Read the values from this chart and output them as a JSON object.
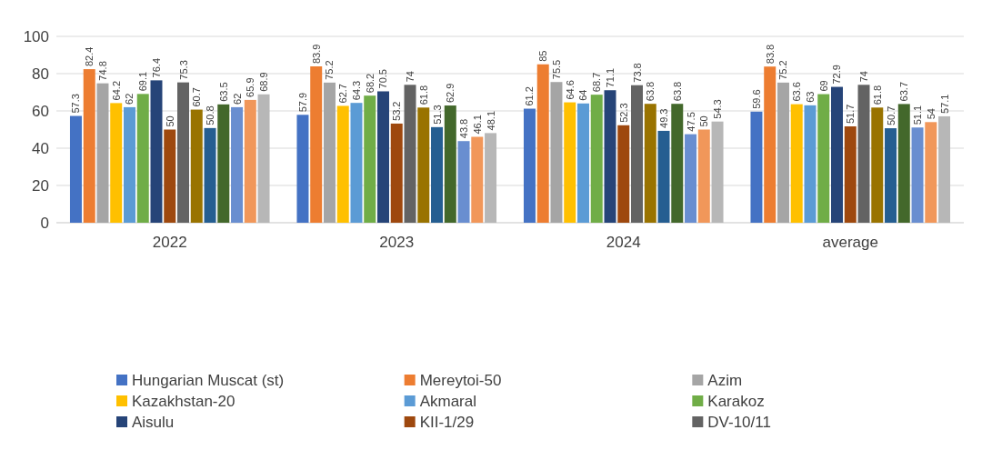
{
  "chart_data": {
    "type": "bar",
    "categories": [
      "2022",
      "2023",
      "2024",
      "average"
    ],
    "series": [
      {
        "name": "Hungarian Muscat (st)",
        "color": "#4472c4",
        "values": [
          57.3,
          57.9,
          61.2,
          59.6
        ]
      },
      {
        "name": "Mereytoi-50",
        "color": "#ed7d31",
        "values": [
          82.4,
          83.9,
          85,
          83.8
        ]
      },
      {
        "name": "Azim",
        "color": "#a5a5a5",
        "values": [
          74.8,
          75.2,
          75.5,
          75.2
        ]
      },
      {
        "name": "Kazakhstan-20",
        "color": "#ffc000",
        "values": [
          64.2,
          62.7,
          64.6,
          63.6
        ]
      },
      {
        "name": "Akmaral",
        "color": "#5b9bd5",
        "values": [
          62,
          64.3,
          64,
          63
        ]
      },
      {
        "name": "Karakoz",
        "color": "#70ad47",
        "values": [
          69.1,
          68.2,
          68.7,
          69
        ]
      },
      {
        "name": "Aisulu",
        "color": "#264478",
        "values": [
          76.4,
          70.5,
          71.1,
          72.9
        ]
      },
      {
        "name": "KII-1/29",
        "color": "#9e480e",
        "values": [
          50,
          53.2,
          52.3,
          51.7
        ]
      },
      {
        "name": "DV-10/11",
        "color": "#636363",
        "values": [
          75.3,
          74,
          73.8,
          74
        ]
      },
      {
        "color": "#997300",
        "values": [
          60.7,
          61.8,
          63.8,
          61.8
        ]
      },
      {
        "color": "#255e91",
        "values": [
          50.8,
          51.3,
          49.3,
          50.7
        ]
      },
      {
        "color": "#43682b",
        "values": [
          63.5,
          62.9,
          63.8,
          63.7
        ]
      },
      {
        "color": "#698ed0",
        "values": [
          62,
          43.8,
          47.5,
          51.1
        ]
      },
      {
        "color": "#f1975a",
        "values": [
          65.9,
          46.1,
          50,
          54
        ]
      },
      {
        "color": "#b7b7b7",
        "values": [
          68.9,
          48.1,
          54.3,
          57.1
        ]
      }
    ],
    "ylim": [
      0,
      100
    ],
    "yticks": [
      0,
      20,
      40,
      60,
      80,
      100
    ],
    "grid": "y",
    "legend": "bottom",
    "data_labels": true
  }
}
